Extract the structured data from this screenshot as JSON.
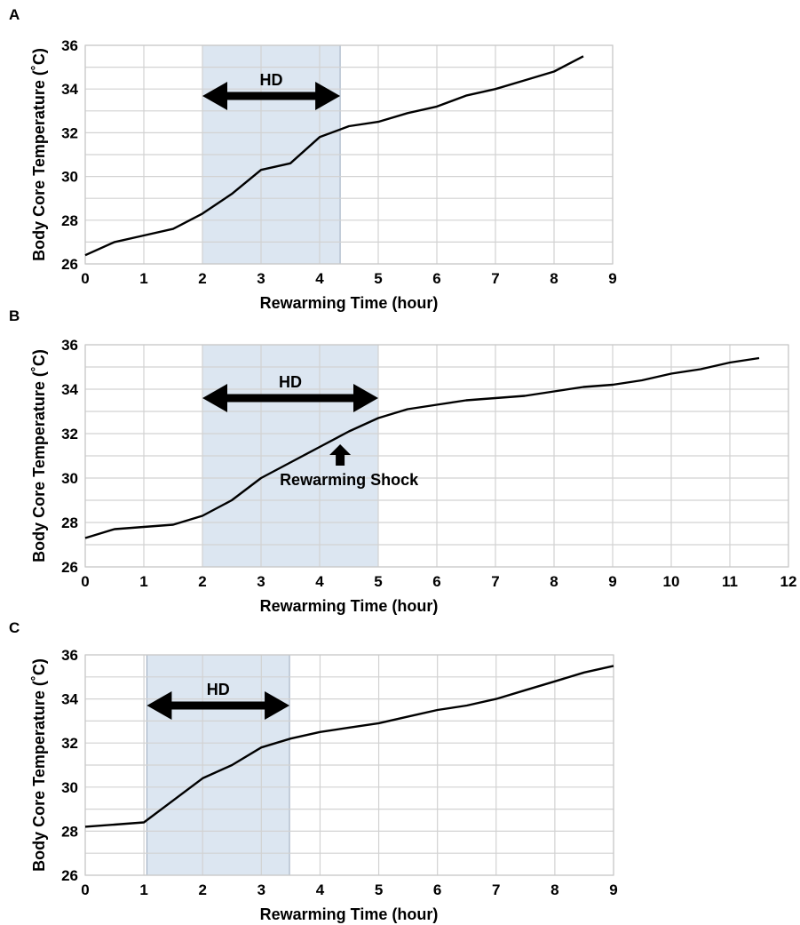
{
  "colors": {
    "hd_band": "#dce6f1",
    "hd_band_edge": "#9aa9bd",
    "line": "#000000",
    "grid": "#d2d2d2",
    "arrow": "#000000"
  },
  "chart_data": [
    {
      "panel": "A",
      "type": "line",
      "xlabel": "Rewarming Time (hour)",
      "ylabel": "Body Core Temperature (˚C)",
      "xlim": [
        0,
        9
      ],
      "ylim": [
        26,
        36
      ],
      "xticks": [
        "0",
        "1",
        "2",
        "3",
        "4",
        "5",
        "6",
        "7",
        "8",
        "9"
      ],
      "yticks": [
        "26",
        "28",
        "30",
        "32",
        "34",
        "36"
      ],
      "grid": true,
      "hd_interval": [
        2,
        4.35
      ],
      "hd_label": "HD",
      "series": [
        {
          "x": [
            0,
            0.5,
            1,
            1.5,
            2,
            2.5,
            3,
            3.5,
            4,
            4.5,
            5,
            5.5,
            6,
            6.5,
            7,
            7.5,
            8,
            8.5
          ],
          "y": [
            26.4,
            27.0,
            27.3,
            27.6,
            28.3,
            29.2,
            30.3,
            30.6,
            31.8,
            32.3,
            32.5,
            32.9,
            33.2,
            33.7,
            34.0,
            34.4,
            34.8,
            35.5
          ]
        }
      ]
    },
    {
      "panel": "B",
      "type": "line",
      "xlabel": "Rewarming Time (hour)",
      "ylabel": "Body Core Temperature (˚C)",
      "xlim": [
        0,
        12
      ],
      "ylim": [
        26,
        36
      ],
      "xticks": [
        "0",
        "1",
        "2",
        "3",
        "4",
        "5",
        "6",
        "7",
        "8",
        "9",
        "10",
        "11",
        "12"
      ],
      "yticks": [
        "26",
        "28",
        "30",
        "32",
        "34",
        "36"
      ],
      "grid": true,
      "hd_interval": [
        2,
        5
      ],
      "hd_label": "HD",
      "annotation": {
        "text": "Rewarming Shock",
        "x": 4.35,
        "y": 32.0
      },
      "series": [
        {
          "x": [
            0,
            0.5,
            1,
            1.5,
            2,
            2.5,
            3,
            3.5,
            4,
            4.5,
            5,
            5.5,
            6,
            6.5,
            7,
            7.5,
            8,
            8.5,
            9,
            9.5,
            10,
            10.5,
            11,
            11.5
          ],
          "y": [
            27.3,
            27.7,
            27.8,
            27.9,
            28.3,
            29.0,
            30.0,
            30.7,
            31.4,
            32.1,
            32.7,
            33.1,
            33.3,
            33.5,
            33.6,
            33.7,
            33.9,
            34.1,
            34.2,
            34.4,
            34.7,
            34.9,
            35.2,
            35.4
          ]
        }
      ]
    },
    {
      "panel": "C",
      "type": "line",
      "xlabel": "Rewarming Time (hour)",
      "ylabel": "Body Core Temperature (˚C)",
      "xlim": [
        0,
        9
      ],
      "ylim": [
        26,
        36
      ],
      "xticks": [
        "0",
        "1",
        "2",
        "3",
        "4",
        "5",
        "6",
        "7",
        "8",
        "9"
      ],
      "yticks": [
        "26",
        "28",
        "30",
        "32",
        "34",
        "36"
      ],
      "grid": true,
      "hd_interval": [
        1.05,
        3.48
      ],
      "hd_label": "HD",
      "series": [
        {
          "x": [
            0,
            0.5,
            1,
            1.5,
            2,
            2.5,
            3,
            3.5,
            4,
            4.5,
            5,
            5.5,
            6,
            6.5,
            7,
            7.5,
            8,
            8.5,
            9
          ],
          "y": [
            28.2,
            28.3,
            28.4,
            29.4,
            30.4,
            31.0,
            31.8,
            32.2,
            32.5,
            32.7,
            32.9,
            33.2,
            33.5,
            33.7,
            34.0,
            34.4,
            34.8,
            35.2,
            35.5
          ]
        }
      ]
    }
  ]
}
